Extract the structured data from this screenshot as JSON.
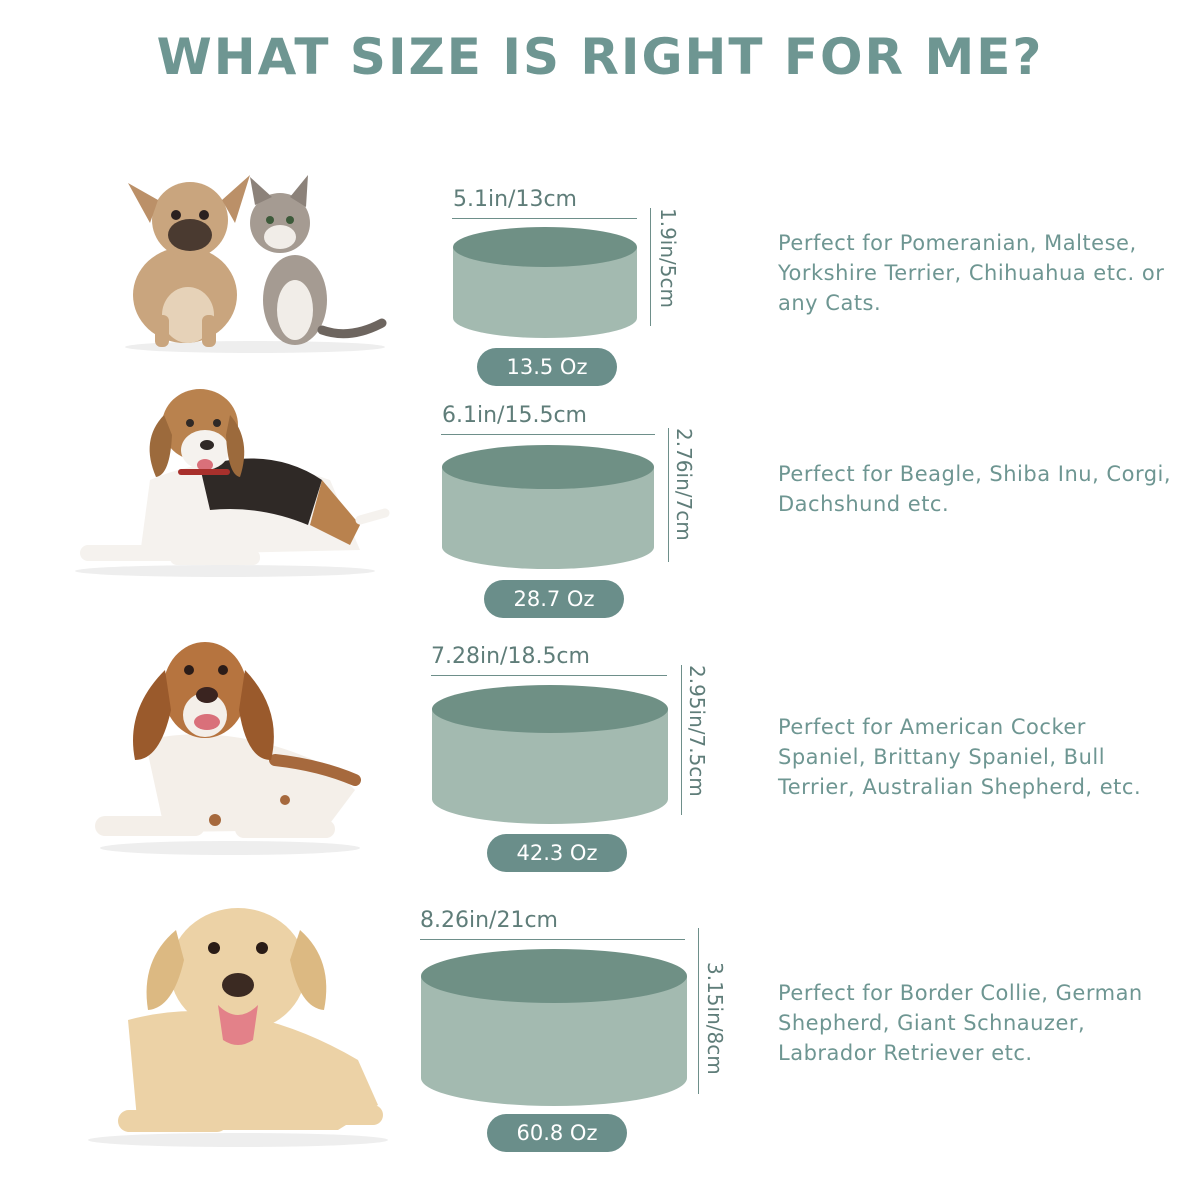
{
  "title": "WHAT SIZE IS RIGHT FOR ME?",
  "colors": {
    "accent": "#6e9692",
    "bowl_body": "#a3bab0",
    "bowl_top": "#6f9085",
    "pill": "#6a8e8a"
  },
  "rows": [
    {
      "pet_icon": "french-bulldog-and-kitten",
      "width_label": "5.1in/13cm",
      "height_label": "1.9in/5cm",
      "capacity": "13.5 Oz",
      "description": "Perfect for Pomeranian, Maltese, Yorkshire Terrier, Chihuahua etc. or any Cats."
    },
    {
      "pet_icon": "beagle",
      "width_label": "6.1in/15.5cm",
      "height_label": "2.76in/7cm",
      "capacity": "28.7 Oz",
      "description": "Perfect for Beagle, Shiba Inu, Corgi, Dachshund etc."
    },
    {
      "pet_icon": "cocker-spaniel",
      "width_label": "7.28in/18.5cm",
      "height_label": "2.95in/7.5cm",
      "capacity": "42.3 Oz",
      "description": "Perfect for American Cocker Spaniel, Brittany Spaniel, Bull Terrier, Australian Shepherd, etc."
    },
    {
      "pet_icon": "labrador-retriever",
      "width_label": "8.26in/21cm",
      "height_label": "3.15in/8cm",
      "capacity": "60.8 Oz",
      "description": "Perfect for Border Collie, German Shepherd, Giant Schnauzer, Labrador Retriever etc."
    }
  ]
}
